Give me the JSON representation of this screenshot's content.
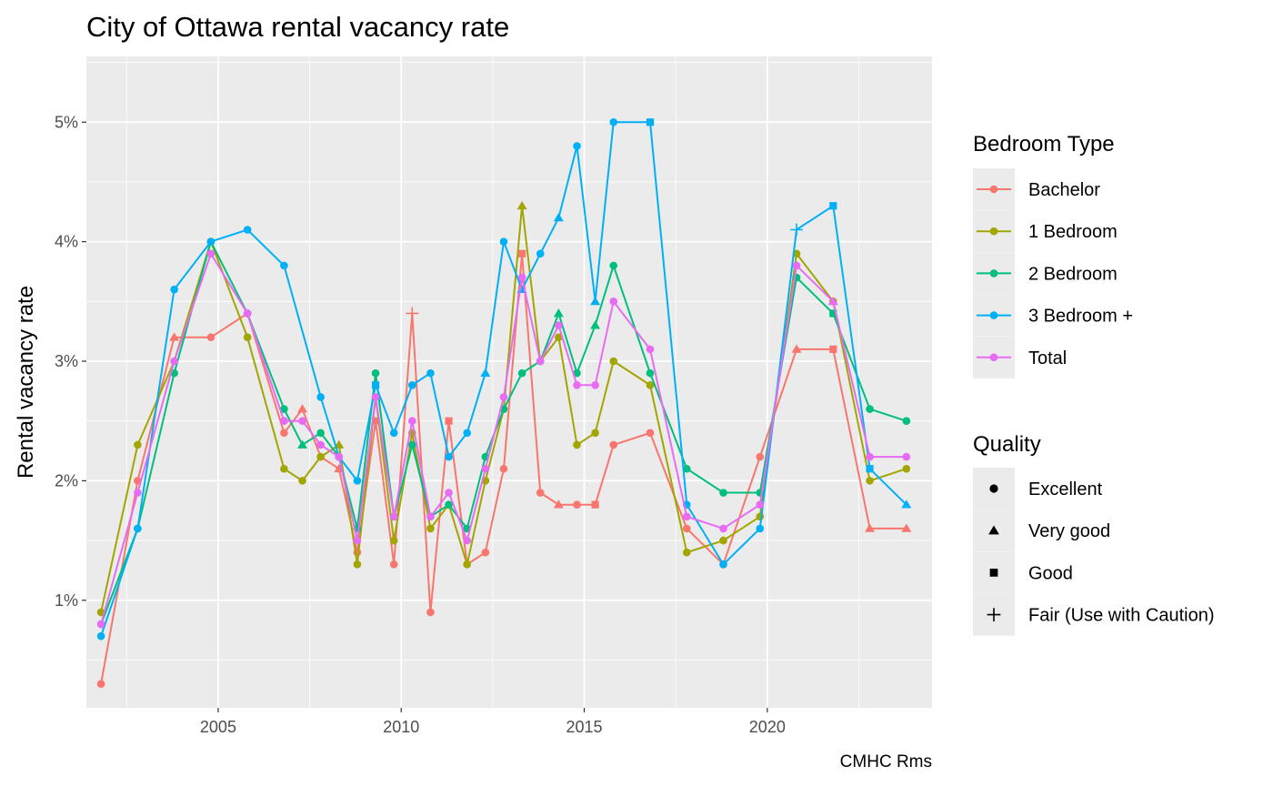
{
  "chart_data": {
    "type": "line",
    "title": "City of Ottawa rental vacancy rate",
    "xlabel": "",
    "ylabel": "Rental vacancy rate",
    "caption": "CMHC Rms",
    "xlim": [
      2001.4,
      2024.5
    ],
    "ylim": [
      0.1,
      5.55
    ],
    "x_ticks": [
      2005,
      2010,
      2015,
      2020
    ],
    "x_tick_labels": [
      "2005",
      "2010",
      "2015",
      "2020"
    ],
    "y_ticks": [
      1,
      2,
      3,
      4,
      5
    ],
    "y_tick_labels": [
      "1%",
      "2%",
      "3%",
      "4%",
      "5%"
    ],
    "grid": true,
    "background": "#EBEBEB",
    "legend_position": "right",
    "color_legend": {
      "title": "Bedroom Type",
      "entries": [
        {
          "name": "Bachelor",
          "color": "#F8766D"
        },
        {
          "name": "1 Bedroom",
          "color": "#A3A500"
        },
        {
          "name": "2 Bedroom",
          "color": "#00BF7D"
        },
        {
          "name": "3 Bedroom +",
          "color": "#00B0F6"
        },
        {
          "name": "Total",
          "color": "#E76BF3"
        }
      ]
    },
    "shape_legend": {
      "title": "Quality",
      "entries": [
        {
          "name": "Excellent",
          "shape": "circle"
        },
        {
          "name": "Very good",
          "shape": "triangle"
        },
        {
          "name": "Good",
          "shape": "square"
        },
        {
          "name": "Fair (Use with Caution)",
          "shape": "plus"
        }
      ]
    },
    "series": [
      {
        "name": "Bachelor",
        "color": "#F8766D",
        "points": [
          [
            2001.8,
            0.3,
            "circle"
          ],
          [
            2002.8,
            2.0,
            "circle"
          ],
          [
            2003.8,
            3.2,
            "triangle"
          ],
          [
            2004.8,
            3.2,
            "circle"
          ],
          [
            2005.8,
            3.4,
            "circle"
          ],
          [
            2006.8,
            2.4,
            "circle"
          ],
          [
            2007.3,
            2.6,
            "triangle"
          ],
          [
            2007.8,
            2.2,
            "circle"
          ],
          [
            2008.3,
            2.1,
            "triangle"
          ],
          [
            2008.8,
            1.4,
            "circle"
          ],
          [
            2009.3,
            2.5,
            "square"
          ],
          [
            2009.8,
            1.3,
            "circle"
          ],
          [
            2010.3,
            3.4,
            "plus"
          ],
          [
            2010.8,
            0.9,
            "circle"
          ],
          [
            2011.3,
            2.5,
            "square"
          ],
          [
            2011.8,
            1.3,
            "circle"
          ],
          [
            2012.3,
            1.4,
            "circle"
          ],
          [
            2012.8,
            2.1,
            "circle"
          ],
          [
            2013.3,
            3.9,
            "square"
          ],
          [
            2013.8,
            1.9,
            "circle"
          ],
          [
            2014.3,
            1.8,
            "triangle"
          ],
          [
            2014.8,
            1.8,
            "circle"
          ],
          [
            2015.3,
            1.8,
            "square"
          ],
          [
            2015.8,
            2.3,
            "circle"
          ],
          [
            2016.8,
            2.4,
            "circle"
          ],
          [
            2017.8,
            1.6,
            "circle"
          ],
          [
            2018.8,
            1.3,
            "circle"
          ],
          [
            2019.8,
            2.2,
            "circle"
          ],
          [
            2020.8,
            3.1,
            "triangle"
          ],
          [
            2021.8,
            3.1,
            "square"
          ],
          [
            2022.8,
            1.6,
            "triangle"
          ],
          [
            2023.8,
            1.6,
            "triangle"
          ]
        ]
      },
      {
        "name": "1 Bedroom",
        "color": "#A3A500",
        "points": [
          [
            2001.8,
            0.9,
            "circle"
          ],
          [
            2002.8,
            2.3,
            "circle"
          ],
          [
            2003.8,
            3.0,
            "circle"
          ],
          [
            2004.8,
            4.0,
            "circle"
          ],
          [
            2005.8,
            3.2,
            "circle"
          ],
          [
            2006.8,
            2.1,
            "circle"
          ],
          [
            2007.3,
            2.0,
            "circle"
          ],
          [
            2007.8,
            2.2,
            "circle"
          ],
          [
            2008.3,
            2.3,
            "triangle"
          ],
          [
            2008.8,
            1.3,
            "circle"
          ],
          [
            2009.3,
            2.7,
            "circle"
          ],
          [
            2009.8,
            1.5,
            "circle"
          ],
          [
            2010.3,
            2.4,
            "circle"
          ],
          [
            2010.8,
            1.6,
            "circle"
          ],
          [
            2011.3,
            1.8,
            "circle"
          ],
          [
            2011.8,
            1.3,
            "circle"
          ],
          [
            2012.3,
            2.0,
            "circle"
          ],
          [
            2012.8,
            2.6,
            "circle"
          ],
          [
            2013.3,
            4.3,
            "triangle"
          ],
          [
            2013.8,
            3.0,
            "circle"
          ],
          [
            2014.3,
            3.2,
            "circle"
          ],
          [
            2014.8,
            2.3,
            "circle"
          ],
          [
            2015.3,
            2.4,
            "circle"
          ],
          [
            2015.8,
            3.0,
            "circle"
          ],
          [
            2016.8,
            2.8,
            "circle"
          ],
          [
            2017.8,
            1.4,
            "circle"
          ],
          [
            2018.8,
            1.5,
            "circle"
          ],
          [
            2019.8,
            1.7,
            "circle"
          ],
          [
            2020.8,
            3.9,
            "circle"
          ],
          [
            2021.8,
            3.5,
            "circle"
          ],
          [
            2022.8,
            2.0,
            "circle"
          ],
          [
            2023.8,
            2.1,
            "circle"
          ]
        ]
      },
      {
        "name": "2 Bedroom",
        "color": "#00BF7D",
        "points": [
          [
            2001.8,
            0.8,
            "circle"
          ],
          [
            2002.8,
            1.6,
            "circle"
          ],
          [
            2003.8,
            2.9,
            "circle"
          ],
          [
            2004.8,
            4.0,
            "circle"
          ],
          [
            2005.8,
            3.4,
            "circle"
          ],
          [
            2006.8,
            2.6,
            "circle"
          ],
          [
            2007.3,
            2.3,
            "triangle"
          ],
          [
            2007.8,
            2.4,
            "circle"
          ],
          [
            2008.3,
            2.2,
            "circle"
          ],
          [
            2008.8,
            1.6,
            "circle"
          ],
          [
            2009.3,
            2.9,
            "circle"
          ],
          [
            2009.8,
            1.7,
            "circle"
          ],
          [
            2010.3,
            2.3,
            "circle"
          ],
          [
            2010.8,
            1.7,
            "circle"
          ],
          [
            2011.3,
            1.8,
            "circle"
          ],
          [
            2011.8,
            1.6,
            "circle"
          ],
          [
            2012.3,
            2.2,
            "circle"
          ],
          [
            2012.8,
            2.6,
            "circle"
          ],
          [
            2013.3,
            2.9,
            "circle"
          ],
          [
            2013.8,
            3.0,
            "circle"
          ],
          [
            2014.3,
            3.4,
            "triangle"
          ],
          [
            2014.8,
            2.9,
            "circle"
          ],
          [
            2015.3,
            3.3,
            "triangle"
          ],
          [
            2015.8,
            3.8,
            "circle"
          ],
          [
            2016.8,
            2.9,
            "circle"
          ],
          [
            2017.8,
            2.1,
            "circle"
          ],
          [
            2018.8,
            1.9,
            "circle"
          ],
          [
            2019.8,
            1.9,
            "circle"
          ],
          [
            2020.8,
            3.7,
            "circle"
          ],
          [
            2021.8,
            3.4,
            "square"
          ],
          [
            2022.8,
            2.6,
            "circle"
          ],
          [
            2023.8,
            2.5,
            "circle"
          ]
        ]
      },
      {
        "name": "3 Bedroom +",
        "color": "#00B0F6",
        "points": [
          [
            2001.8,
            0.7,
            "circle"
          ],
          [
            2002.8,
            1.6,
            "circle"
          ],
          [
            2003.8,
            3.6,
            "circle"
          ],
          [
            2004.8,
            4.0,
            "circle"
          ],
          [
            2005.8,
            4.1,
            "circle"
          ],
          [
            2006.8,
            3.8,
            "circle"
          ],
          [
            2007.8,
            2.7,
            "circle"
          ],
          [
            2008.3,
            2.2,
            "circle"
          ],
          [
            2008.8,
            2.0,
            "circle"
          ],
          [
            2009.3,
            2.8,
            "square"
          ],
          [
            2009.8,
            2.4,
            "circle"
          ],
          [
            2010.3,
            2.8,
            "circle"
          ],
          [
            2010.8,
            2.9,
            "circle"
          ],
          [
            2011.3,
            2.2,
            "circle"
          ],
          [
            2011.8,
            2.4,
            "circle"
          ],
          [
            2012.3,
            2.9,
            "triangle"
          ],
          [
            2012.8,
            4.0,
            "circle"
          ],
          [
            2013.3,
            3.6,
            "triangle"
          ],
          [
            2013.8,
            3.9,
            "circle"
          ],
          [
            2014.3,
            4.2,
            "triangle"
          ],
          [
            2014.8,
            4.8,
            "circle"
          ],
          [
            2015.3,
            3.5,
            "triangle"
          ],
          [
            2015.8,
            5.0,
            "circle"
          ],
          [
            2016.8,
            5.0,
            "square"
          ],
          [
            2017.8,
            1.8,
            "circle"
          ],
          [
            2018.8,
            1.3,
            "circle"
          ],
          [
            2019.8,
            1.6,
            "circle"
          ],
          [
            2020.8,
            4.1,
            "plus"
          ],
          [
            2021.8,
            4.3,
            "square"
          ],
          [
            2022.8,
            2.1,
            "square"
          ],
          [
            2023.8,
            1.8,
            "triangle"
          ]
        ]
      },
      {
        "name": "Total",
        "color": "#E76BF3",
        "points": [
          [
            2001.8,
            0.8,
            "circle"
          ],
          [
            2002.8,
            1.9,
            "circle"
          ],
          [
            2003.8,
            3.0,
            "circle"
          ],
          [
            2004.8,
            3.9,
            "circle"
          ],
          [
            2005.8,
            3.4,
            "circle"
          ],
          [
            2006.8,
            2.5,
            "circle"
          ],
          [
            2007.3,
            2.5,
            "circle"
          ],
          [
            2007.8,
            2.3,
            "circle"
          ],
          [
            2008.3,
            2.2,
            "circle"
          ],
          [
            2008.8,
            1.5,
            "circle"
          ],
          [
            2009.3,
            2.7,
            "circle"
          ],
          [
            2009.8,
            1.7,
            "circle"
          ],
          [
            2010.3,
            2.5,
            "circle"
          ],
          [
            2010.8,
            1.7,
            "circle"
          ],
          [
            2011.3,
            1.9,
            "circle"
          ],
          [
            2011.8,
            1.5,
            "circle"
          ],
          [
            2012.3,
            2.1,
            "circle"
          ],
          [
            2012.8,
            2.7,
            "circle"
          ],
          [
            2013.3,
            3.7,
            "circle"
          ],
          [
            2013.8,
            3.0,
            "circle"
          ],
          [
            2014.3,
            3.3,
            "circle"
          ],
          [
            2014.8,
            2.8,
            "circle"
          ],
          [
            2015.3,
            2.8,
            "circle"
          ],
          [
            2015.8,
            3.5,
            "circle"
          ],
          [
            2016.8,
            3.1,
            "circle"
          ],
          [
            2017.8,
            1.7,
            "circle"
          ],
          [
            2018.8,
            1.6,
            "circle"
          ],
          [
            2019.8,
            1.8,
            "circle"
          ],
          [
            2020.8,
            3.8,
            "circle"
          ],
          [
            2021.8,
            3.5,
            "triangle"
          ],
          [
            2022.8,
            2.2,
            "circle"
          ],
          [
            2023.8,
            2.2,
            "circle"
          ]
        ]
      }
    ]
  }
}
